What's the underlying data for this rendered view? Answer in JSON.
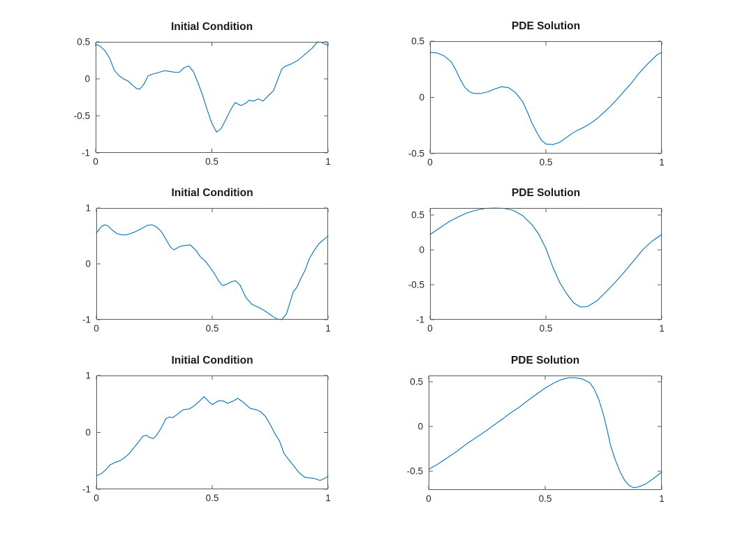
{
  "figure": {
    "background": "#ffffff"
  },
  "colors": {
    "line": "#0072BD",
    "box": "#595959",
    "tick_label": "#262626",
    "title": "#1a1a1a"
  },
  "chart_data": [
    {
      "type": "line",
      "title": "Initial Condition",
      "xlabel": "",
      "ylabel": "",
      "grid": false,
      "legend": null,
      "xlim": [
        0,
        1
      ],
      "ylim": [
        -1,
        0.5
      ],
      "xticks": [
        0,
        0.5,
        1
      ],
      "xtick_labels": [
        "0",
        "0.5",
        "1"
      ],
      "yticks": [
        0.5,
        0,
        -0.5,
        -1
      ],
      "ytick_labels": [
        "0.5",
        "0",
        "-0.5",
        "-1"
      ],
      "x": [
        0,
        0.02,
        0.04,
        0.06,
        0.08,
        0.1,
        0.12,
        0.14,
        0.16,
        0.175,
        0.19,
        0.21,
        0.225,
        0.245,
        0.265,
        0.285,
        0.3,
        0.32,
        0.34,
        0.36,
        0.38,
        0.4,
        0.42,
        0.44,
        0.46,
        0.48,
        0.5,
        0.52,
        0.54,
        0.56,
        0.58,
        0.6,
        0.625,
        0.645,
        0.66,
        0.68,
        0.7,
        0.72,
        0.745,
        0.765,
        0.78,
        0.8,
        0.815,
        0.84,
        0.87,
        0.9,
        0.93,
        0.955,
        0.97,
        0.985,
        1.0
      ],
      "y": [
        0.47,
        0.44,
        0.38,
        0.28,
        0.12,
        0.045,
        0.0,
        -0.03,
        -0.09,
        -0.13,
        -0.14,
        -0.06,
        0.04,
        0.065,
        0.08,
        0.1,
        0.11,
        0.1,
        0.09,
        0.09,
        0.15,
        0.175,
        0.1,
        -0.05,
        -0.22,
        -0.42,
        -0.6,
        -0.72,
        -0.67,
        -0.55,
        -0.42,
        -0.32,
        -0.36,
        -0.33,
        -0.29,
        -0.3,
        -0.27,
        -0.3,
        -0.22,
        -0.16,
        -0.04,
        0.13,
        0.17,
        0.2,
        0.25,
        0.33,
        0.41,
        0.5,
        0.495,
        0.47,
        0.455
      ]
    },
    {
      "type": "line",
      "title": "PDE Solution",
      "xlabel": "",
      "ylabel": "",
      "grid": false,
      "legend": null,
      "xlim": [
        0,
        1
      ],
      "ylim": [
        -0.5,
        0.5
      ],
      "xticks": [
        0,
        0.5,
        1
      ],
      "xtick_labels": [
        "0",
        "0.5",
        "1"
      ],
      "yticks": [
        0.5,
        0,
        -0.5
      ],
      "ytick_labels": [
        "0.5",
        "0",
        "-0.5"
      ],
      "x": [
        0,
        0.03,
        0.06,
        0.09,
        0.11,
        0.13,
        0.15,
        0.17,
        0.19,
        0.22,
        0.25,
        0.28,
        0.31,
        0.34,
        0.37,
        0.4,
        0.42,
        0.44,
        0.46,
        0.48,
        0.5,
        0.53,
        0.56,
        0.58,
        0.61,
        0.63,
        0.66,
        0.69,
        0.72,
        0.75,
        0.78,
        0.81,
        0.84,
        0.87,
        0.9,
        0.93,
        0.96,
        0.98,
        1.0
      ],
      "y": [
        0.4,
        0.395,
        0.37,
        0.32,
        0.25,
        0.16,
        0.09,
        0.05,
        0.035,
        0.035,
        0.05,
        0.075,
        0.095,
        0.085,
        0.04,
        -0.04,
        -0.13,
        -0.23,
        -0.31,
        -0.38,
        -0.415,
        -0.42,
        -0.4,
        -0.37,
        -0.325,
        -0.3,
        -0.27,
        -0.235,
        -0.19,
        -0.135,
        -0.075,
        -0.01,
        0.06,
        0.13,
        0.21,
        0.28,
        0.34,
        0.38,
        0.4
      ]
    },
    {
      "type": "line",
      "title": "Initial Condition",
      "xlabel": "",
      "ylabel": "",
      "grid": false,
      "legend": null,
      "xlim": [
        0,
        1
      ],
      "ylim": [
        -1,
        1
      ],
      "xticks": [
        0,
        0.5,
        1
      ],
      "xtick_labels": [
        "0",
        "0.5",
        "1"
      ],
      "yticks": [
        1,
        0,
        -1
      ],
      "ytick_labels": [
        "1",
        "0",
        "-1"
      ],
      "x": [
        0,
        0.02,
        0.035,
        0.05,
        0.07,
        0.09,
        0.11,
        0.13,
        0.16,
        0.19,
        0.22,
        0.24,
        0.26,
        0.28,
        0.3,
        0.32,
        0.335,
        0.36,
        0.385,
        0.405,
        0.43,
        0.45,
        0.47,
        0.49,
        0.51,
        0.53,
        0.545,
        0.565,
        0.585,
        0.6,
        0.62,
        0.645,
        0.67,
        0.7,
        0.73,
        0.76,
        0.78,
        0.8,
        0.82,
        0.835,
        0.85,
        0.865,
        0.88,
        0.9,
        0.92,
        0.94,
        0.96,
        0.98,
        1.0
      ],
      "y": [
        0.55,
        0.66,
        0.7,
        0.68,
        0.6,
        0.54,
        0.52,
        0.52,
        0.56,
        0.62,
        0.69,
        0.7,
        0.66,
        0.58,
        0.44,
        0.3,
        0.25,
        0.31,
        0.33,
        0.34,
        0.24,
        0.12,
        0.05,
        -0.06,
        -0.18,
        -0.32,
        -0.39,
        -0.36,
        -0.32,
        -0.3,
        -0.38,
        -0.6,
        -0.72,
        -0.78,
        -0.85,
        -0.94,
        -0.99,
        -1.0,
        -0.9,
        -0.7,
        -0.5,
        -0.42,
        -0.28,
        -0.12,
        0.1,
        0.24,
        0.36,
        0.43,
        0.5
      ]
    },
    {
      "type": "line",
      "title": "PDE Solution",
      "xlabel": "",
      "ylabel": "",
      "grid": false,
      "legend": null,
      "xlim": [
        0,
        1
      ],
      "ylim": [
        -1,
        0.6
      ],
      "xticks": [
        0,
        0.5,
        1
      ],
      "xtick_labels": [
        "0",
        "0.5",
        "1"
      ],
      "yticks": [
        0.5,
        0,
        -0.5,
        -1
      ],
      "ytick_labels": [
        "0.5",
        "0",
        "-0.5",
        "-1"
      ],
      "x": [
        0,
        0.04,
        0.08,
        0.12,
        0.16,
        0.2,
        0.24,
        0.28,
        0.32,
        0.36,
        0.4,
        0.44,
        0.47,
        0.5,
        0.53,
        0.56,
        0.59,
        0.62,
        0.65,
        0.68,
        0.72,
        0.76,
        0.8,
        0.84,
        0.88,
        0.92,
        0.96,
        1.0
      ],
      "y": [
        0.22,
        0.31,
        0.4,
        0.47,
        0.53,
        0.57,
        0.595,
        0.6,
        0.595,
        0.565,
        0.49,
        0.36,
        0.22,
        0.02,
        -0.25,
        -0.47,
        -0.63,
        -0.76,
        -0.82,
        -0.81,
        -0.73,
        -0.6,
        -0.46,
        -0.31,
        -0.15,
        0.01,
        0.13,
        0.22
      ]
    },
    {
      "type": "line",
      "title": "Initial Condition",
      "xlabel": "",
      "ylabel": "",
      "grid": false,
      "legend": null,
      "xlim": [
        0,
        1
      ],
      "ylim": [
        -1,
        1
      ],
      "xticks": [
        0,
        0.5,
        1
      ],
      "xtick_labels": [
        "0",
        "0.5",
        "1"
      ],
      "yticks": [
        1,
        0,
        -1
      ],
      "ytick_labels": [
        "1",
        "0",
        "-1"
      ],
      "x": [
        0,
        0.02,
        0.04,
        0.06,
        0.08,
        0.1,
        0.12,
        0.14,
        0.16,
        0.18,
        0.2,
        0.215,
        0.23,
        0.245,
        0.26,
        0.28,
        0.3,
        0.315,
        0.33,
        0.35,
        0.375,
        0.4,
        0.42,
        0.435,
        0.465,
        0.49,
        0.5,
        0.53,
        0.55,
        0.565,
        0.59,
        0.61,
        0.63,
        0.645,
        0.665,
        0.69,
        0.71,
        0.73,
        0.75,
        0.77,
        0.79,
        0.81,
        0.83,
        0.85,
        0.875,
        0.9,
        0.92,
        0.94,
        0.965,
        0.98,
        1.0
      ],
      "y": [
        -0.76,
        -0.73,
        -0.66,
        -0.57,
        -0.53,
        -0.5,
        -0.45,
        -0.38,
        -0.28,
        -0.18,
        -0.07,
        -0.05,
        -0.09,
        -0.11,
        -0.05,
        0.08,
        0.24,
        0.27,
        0.26,
        0.32,
        0.4,
        0.41,
        0.46,
        0.51,
        0.63,
        0.52,
        0.49,
        0.56,
        0.55,
        0.51,
        0.55,
        0.6,
        0.54,
        0.49,
        0.42,
        0.4,
        0.36,
        0.28,
        0.14,
        -0.02,
        -0.15,
        -0.37,
        -0.48,
        -0.58,
        -0.71,
        -0.79,
        -0.8,
        -0.81,
        -0.845,
        -0.82,
        -0.77
      ]
    },
    {
      "type": "line",
      "title": "PDE Solution",
      "xlabel": "",
      "ylabel": "",
      "grid": false,
      "legend": null,
      "xlim": [
        0,
        1
      ],
      "ylim": [
        -0.71,
        0.57
      ],
      "xticks": [
        0,
        0.5,
        1
      ],
      "xtick_labels": [
        "0",
        "0.5",
        "1"
      ],
      "yticks": [
        0.5,
        0,
        -0.5
      ],
      "ytick_labels": [
        "0.5",
        "0",
        "-0.5"
      ],
      "x": [
        0,
        0.04,
        0.08,
        0.12,
        0.16,
        0.2,
        0.24,
        0.28,
        0.32,
        0.35,
        0.38,
        0.42,
        0.46,
        0.5,
        0.54,
        0.57,
        0.6,
        0.63,
        0.66,
        0.69,
        0.71,
        0.73,
        0.75,
        0.765,
        0.78,
        0.8,
        0.82,
        0.84,
        0.86,
        0.88,
        0.9,
        0.93,
        0.96,
        0.98,
        1.0
      ],
      "y": [
        -0.48,
        -0.42,
        -0.35,
        -0.28,
        -0.2,
        -0.13,
        -0.06,
        0.015,
        0.09,
        0.15,
        0.2,
        0.28,
        0.355,
        0.43,
        0.49,
        0.525,
        0.545,
        0.545,
        0.53,
        0.49,
        0.42,
        0.3,
        0.13,
        -0.03,
        -0.21,
        -0.37,
        -0.5,
        -0.6,
        -0.66,
        -0.685,
        -0.675,
        -0.645,
        -0.59,
        -0.55,
        -0.51
      ]
    }
  ]
}
